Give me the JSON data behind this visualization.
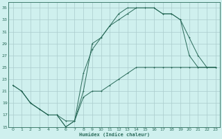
{
  "xlabel": "Humidex (Indice chaleur)",
  "background_color": "#cff0ee",
  "grid_color": "#aacccc",
  "line_color": "#2a6b5a",
  "line1": {
    "x": [
      0,
      1,
      2,
      3,
      4,
      5,
      6,
      7,
      8,
      9,
      10,
      11,
      12,
      13,
      14,
      15,
      16,
      17,
      18,
      19,
      20,
      21,
      22,
      23
    ],
    "y": [
      22,
      21,
      19,
      18,
      17,
      17,
      15,
      16,
      21,
      29,
      30,
      32,
      33,
      34,
      35,
      35,
      35,
      34,
      34,
      33,
      30,
      27,
      25,
      25
    ]
  },
  "line2": {
    "x": [
      0,
      1,
      2,
      3,
      4,
      5,
      6,
      7,
      8,
      9,
      10,
      11,
      12,
      13,
      14,
      15,
      16,
      17,
      18,
      19,
      20,
      21,
      22,
      23
    ],
    "y": [
      22,
      21,
      19,
      18,
      17,
      17,
      15,
      16,
      24,
      28,
      30,
      32,
      34,
      35,
      35,
      35,
      35,
      34,
      34,
      33,
      27,
      25,
      25,
      25
    ]
  },
  "line3": {
    "x": [
      1,
      2,
      3,
      4,
      5,
      6,
      7,
      8,
      9,
      10,
      11,
      12,
      13,
      14,
      15,
      16,
      17,
      18,
      19,
      20,
      21,
      22,
      23
    ],
    "y": [
      21,
      19,
      18,
      17,
      17,
      16,
      16,
      20,
      21,
      21,
      22,
      23,
      24,
      25,
      25,
      25,
      25,
      25,
      25,
      25,
      25,
      25,
      25
    ]
  },
  "xlim": [
    -0.5,
    23.5
  ],
  "ylim": [
    15,
    36
  ],
  "yticks": [
    15,
    17,
    19,
    21,
    23,
    25,
    27,
    29,
    31,
    33,
    35
  ],
  "xticks": [
    0,
    1,
    2,
    3,
    4,
    5,
    6,
    7,
    8,
    9,
    10,
    11,
    12,
    13,
    14,
    15,
    16,
    17,
    18,
    19,
    20,
    21,
    22,
    23
  ]
}
